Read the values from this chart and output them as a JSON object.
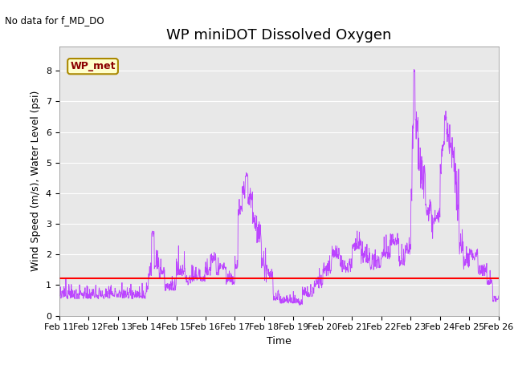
{
  "title": "WP miniDOT Dissolved Oxygen",
  "top_left_text": "No data for f_MD_DO",
  "ylabel": "Wind Speed (m/s), Water Level (psi)",
  "xlabel": "Time",
  "ylim": [
    0.0,
    8.8
  ],
  "yticks": [
    0.0,
    1.0,
    2.0,
    3.0,
    4.0,
    5.0,
    6.0,
    7.0,
    8.0
  ],
  "water_level": 1.22,
  "water_level_color": "#ff0000",
  "ws_color": "#bb44ff",
  "legend_box_label": "WP_met",
  "legend_box_facecolor": "#ffffcc",
  "legend_box_edgecolor": "#aa8800",
  "background_color": "#e8e8e8",
  "title_fontsize": 13,
  "axis_label_fontsize": 9,
  "tick_fontsize": 8,
  "n_points": 1440
}
